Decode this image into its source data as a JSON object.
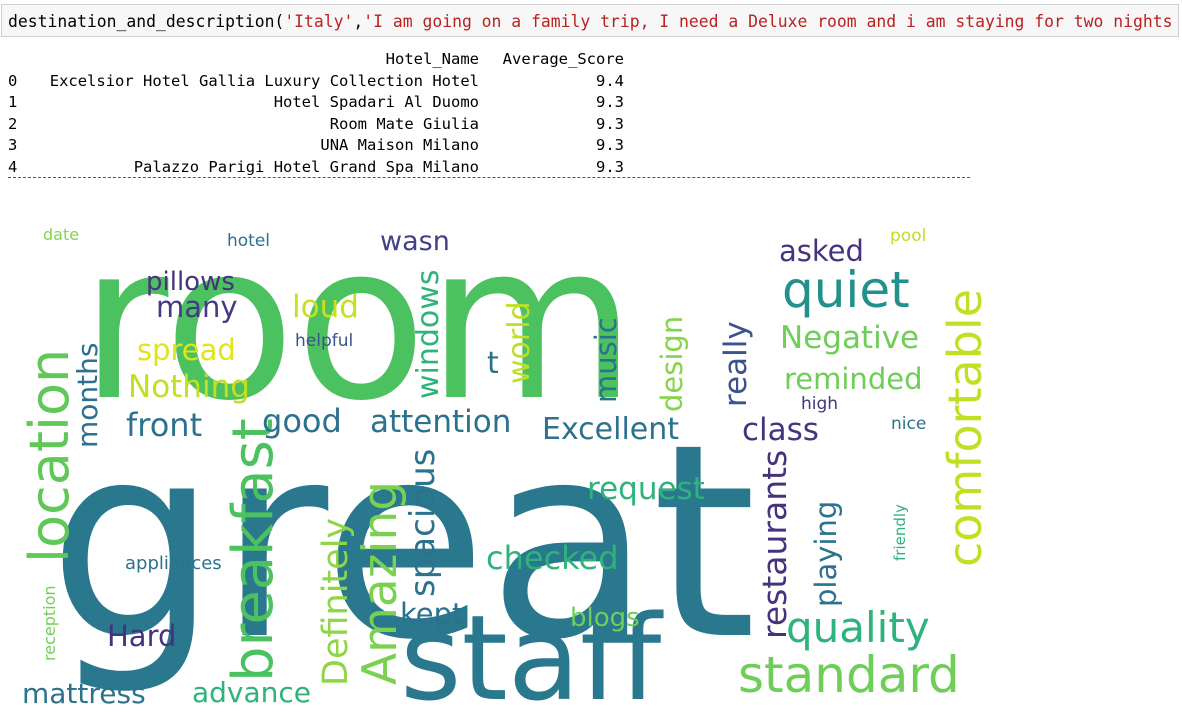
{
  "cell": {
    "fn": "destination_and_description(",
    "arg1": "'Italy'",
    "comma": ",",
    "arg2": "'I am going on a family trip, I need a Deluxe room and i am staying for two nights '",
    "close": ")"
  },
  "table": {
    "headers": [
      "Hotel_Name",
      "Average_Score"
    ],
    "rows": [
      {
        "idx": "0",
        "name": "Excelsior Hotel Gallia Luxury Collection Hotel",
        "score": "9.4"
      },
      {
        "idx": "1",
        "name": "Hotel Spadari Al Duomo",
        "score": "9.3"
      },
      {
        "idx": "2",
        "name": "Room Mate Giulia",
        "score": "9.3"
      },
      {
        "idx": "3",
        "name": "UNA Maison Milano",
        "score": "9.3"
      },
      {
        "idx": "4",
        "name": "Palazzo Parigi Hotel Grand Spa Milano",
        "score": "9.3"
      }
    ]
  },
  "wordcloud": {
    "words": [
      {
        "text": "room",
        "color": "#4cc15f"
      },
      {
        "text": "great",
        "color": "#2a788e"
      },
      {
        "text": "staff",
        "color": "#2a788e"
      },
      {
        "text": "location",
        "color": "#60c857"
      },
      {
        "text": "breakfast",
        "color": "#4cc15f"
      },
      {
        "text": "comfortable",
        "color": "#c2df23"
      },
      {
        "text": "quiet",
        "color": "#24908c"
      },
      {
        "text": "standard",
        "color": "#6ece58"
      },
      {
        "text": "quality",
        "color": "#2eb37c"
      },
      {
        "text": "Amazing",
        "color": "#7ad151"
      },
      {
        "text": "Definitely",
        "color": "#8ed645"
      },
      {
        "text": "spacious",
        "color": "#2c718e"
      },
      {
        "text": "restaurants",
        "color": "#46337e"
      },
      {
        "text": "checked",
        "color": "#2eb37c"
      },
      {
        "text": "request",
        "color": "#2eb37c"
      },
      {
        "text": "Excellent",
        "color": "#2c718e"
      },
      {
        "text": "attention",
        "color": "#2c718e"
      },
      {
        "text": "front",
        "color": "#2c718e"
      },
      {
        "text": "good",
        "color": "#2c718e"
      },
      {
        "text": "class",
        "color": "#46337e"
      },
      {
        "text": "Nothing",
        "color": "#c2df23"
      },
      {
        "text": "spread",
        "color": "#e2e418"
      },
      {
        "text": "many",
        "color": "#443983"
      },
      {
        "text": "pillows",
        "color": "#46337e"
      },
      {
        "text": "loud",
        "color": "#c8e020"
      },
      {
        "text": "wasn",
        "color": "#424086"
      },
      {
        "text": "windows",
        "color": "#2eb37c"
      },
      {
        "text": "world",
        "color": "#bddf26"
      },
      {
        "text": "t",
        "color": "#2c718e"
      },
      {
        "text": "music",
        "color": "#2c718e"
      },
      {
        "text": "design",
        "color": "#86d549"
      },
      {
        "text": "really",
        "color": "#3b528b"
      },
      {
        "text": "asked",
        "color": "#46337e"
      },
      {
        "text": "Negative",
        "color": "#6ece58"
      },
      {
        "text": "reminded",
        "color": "#6ece58"
      },
      {
        "text": "months",
        "color": "#2c718e"
      },
      {
        "text": "kept",
        "color": "#2c718e"
      },
      {
        "text": "Hard",
        "color": "#46337e"
      },
      {
        "text": "mattress",
        "color": "#2c718e"
      },
      {
        "text": "advance",
        "color": "#2eb37c"
      },
      {
        "text": "blogs",
        "color": "#6ece58"
      },
      {
        "text": "playing",
        "color": "#2c718e"
      },
      {
        "text": "appliances",
        "color": "#2c718e"
      },
      {
        "text": "reception",
        "color": "#6ece58"
      },
      {
        "text": "friendly",
        "color": "#2eb37c"
      },
      {
        "text": "nice",
        "color": "#2c718e"
      },
      {
        "text": "high",
        "color": "#46337e"
      },
      {
        "text": "pool",
        "color": "#bddf26"
      },
      {
        "text": "hotel",
        "color": "#2c718e"
      },
      {
        "text": "helpful",
        "color": "#3b528b"
      },
      {
        "text": "date",
        "color": "#86d549"
      }
    ]
  }
}
